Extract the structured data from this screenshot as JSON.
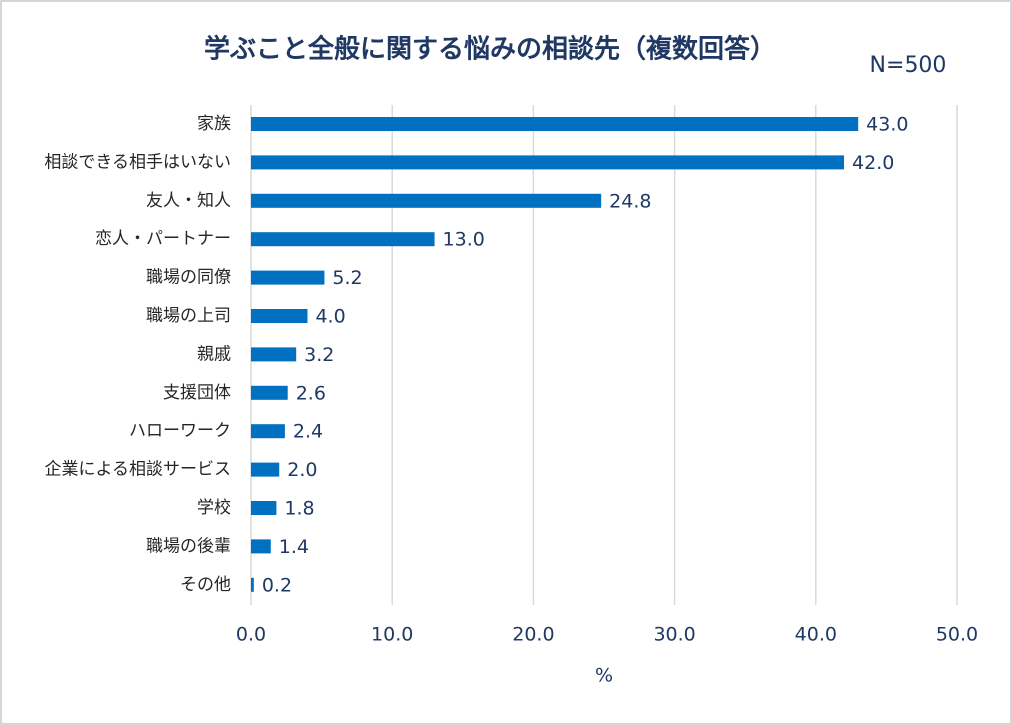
{
  "chart_data": {
    "type": "bar",
    "orientation": "horizontal",
    "title": "学ぶこと全般に関する悩みの相談先（複数回答）",
    "annotation": "N=500",
    "xlabel": "%",
    "categories": [
      "家族",
      "相談できる相手はいない",
      "友人・知人",
      "恋人・パートナー",
      "職場の同僚",
      "職場の上司",
      "親戚",
      "支援団体",
      "ハローワーク",
      "企業による相談サービス",
      "学校",
      "職場の後輩",
      "その他"
    ],
    "values": [
      43.0,
      42.0,
      24.8,
      13.0,
      5.2,
      4.0,
      3.2,
      2.6,
      2.4,
      2.0,
      1.8,
      1.4,
      0.2
    ],
    "value_labels": [
      "43.0",
      "42.0",
      "24.8",
      "13.0",
      "5.2",
      "4.0",
      "3.2",
      "2.6",
      "2.4",
      "2.0",
      "1.8",
      "1.4",
      "0.2"
    ],
    "color": "#0070c0",
    "xlim": [
      0,
      50
    ],
    "xticks": [
      {
        "value": 0,
        "label": "0.0"
      },
      {
        "value": 10,
        "label": "10.0"
      },
      {
        "value": 20,
        "label": "20.0"
      },
      {
        "value": 30,
        "label": "30.0"
      },
      {
        "value": 40,
        "label": "40.0"
      },
      {
        "value": 50,
        "label": "50.0"
      }
    ],
    "grid": true
  }
}
